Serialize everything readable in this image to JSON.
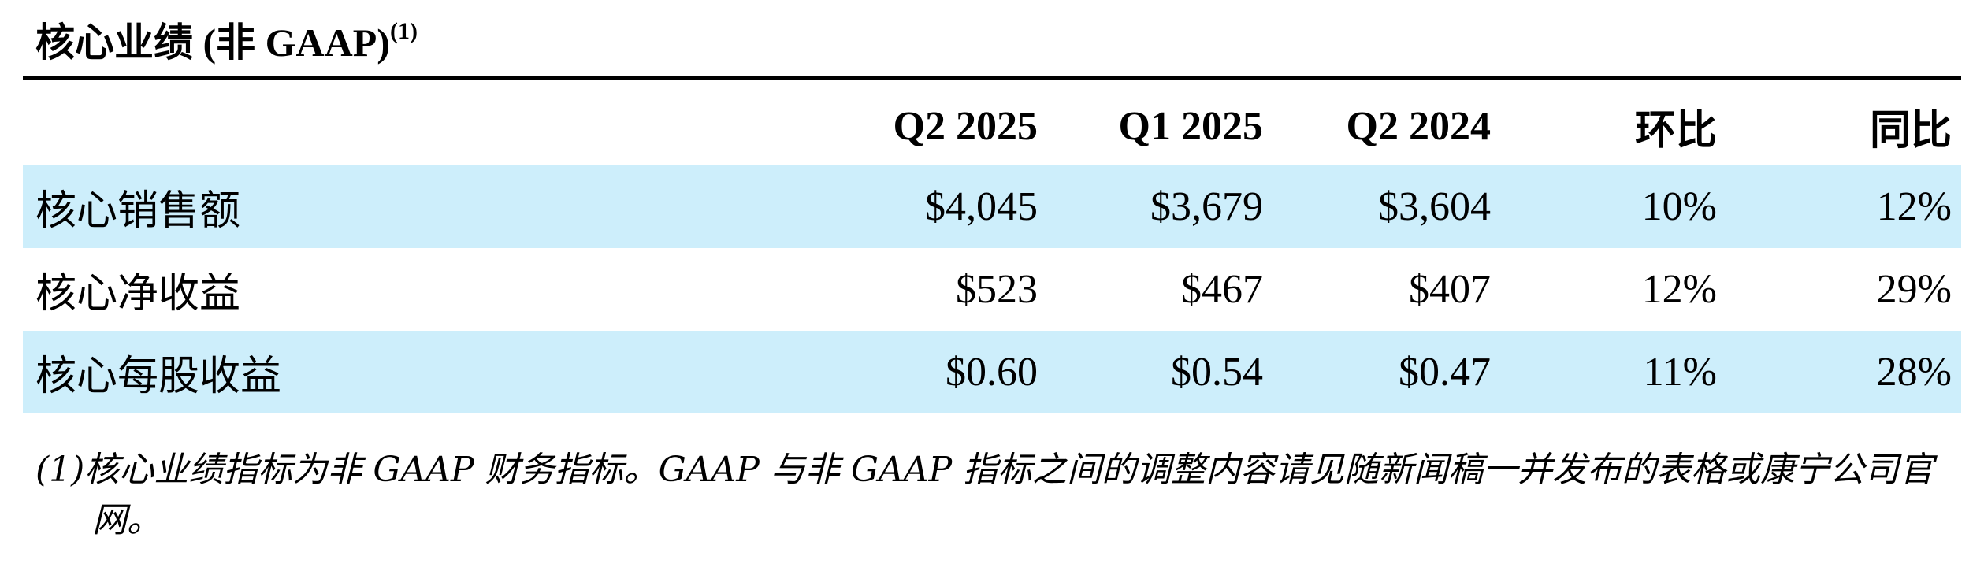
{
  "header": {
    "title": "核心业绩 (非 GAAP)",
    "note_ref": "(1)"
  },
  "table": {
    "columns": [
      "Q2 2025",
      "Q1 2025",
      "Q2 2024",
      "环比",
      "同比"
    ],
    "rows": [
      [
        "核心销售额",
        "$4,045",
        "$3,679",
        "$3,604",
        "10%",
        "12%"
      ],
      [
        "核心净收益",
        "$523",
        "$467",
        "$407",
        "12%",
        "29%"
      ],
      [
        "核心每股收益",
        "$0.60",
        "$0.54",
        "$0.47",
        "11%",
        "28%"
      ]
    ]
  },
  "footnote": {
    "marker": "(1)",
    "text": "核心业绩指标为非 GAAP 财务指标。GAAP 与非 GAAP 指标之间的调整内容请见随新闻稿一并发布的表格或康宁公司官网。"
  }
}
